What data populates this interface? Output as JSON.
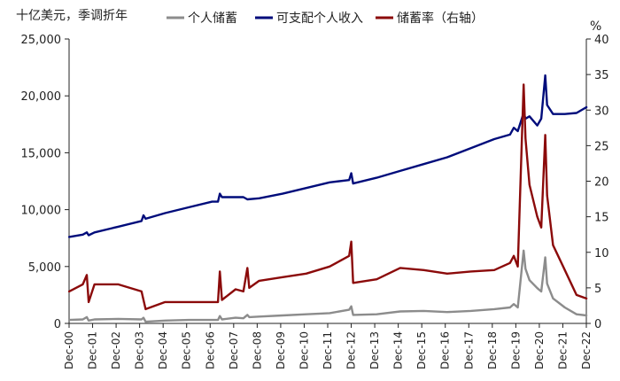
{
  "chart_data": {
    "type": "line",
    "title": "",
    "left_axis_label": "十亿美元，季调折年",
    "right_axis_label": "%",
    "y_left": {
      "min": 0,
      "max": 25000,
      "ticks": [
        "0",
        "5,000",
        "10,000",
        "15,000",
        "20,000",
        "25,000"
      ]
    },
    "y_right": {
      "min": 0,
      "max": 40,
      "ticks": [
        "0",
        "5",
        "10",
        "15",
        "20",
        "25",
        "30",
        "35",
        "40"
      ]
    },
    "x_range": [
      2000.917,
      2022.917
    ],
    "x_ticks": [
      "Dec-00",
      "Dec-01",
      "Dec-02",
      "Dec-03",
      "Dec-04",
      "Dec-05",
      "Dec-06",
      "Dec-07",
      "Dec-08",
      "Dec-09",
      "Dec-10",
      "Dec-11",
      "Dec-12",
      "Dec-13",
      "Dec-14",
      "Dec-15",
      "Dec-16",
      "Dec-17",
      "Dec-18",
      "Dec-19",
      "Dec-20",
      "Dec-21",
      "Dec-22"
    ],
    "legend_position": "top",
    "grid": false,
    "series": [
      {
        "name": "个人储蓄",
        "axis": "left",
        "color": "#8c8c8c",
        "points": [
          [
            2000.92,
            300
          ],
          [
            2001.5,
            350
          ],
          [
            2001.67,
            550
          ],
          [
            2001.75,
            250
          ],
          [
            2002.0,
            350
          ],
          [
            2003.0,
            400
          ],
          [
            2004.0,
            350
          ],
          [
            2004.08,
            500
          ],
          [
            2004.17,
            150
          ],
          [
            2005.0,
            250
          ],
          [
            2006.0,
            300
          ],
          [
            2007.0,
            300
          ],
          [
            2007.25,
            300
          ],
          [
            2007.33,
            650
          ],
          [
            2007.42,
            350
          ],
          [
            2008.0,
            500
          ],
          [
            2008.33,
            450
          ],
          [
            2008.5,
            750
          ],
          [
            2008.58,
            550
          ],
          [
            2009.0,
            600
          ],
          [
            2010.0,
            700
          ],
          [
            2011.0,
            800
          ],
          [
            2012.0,
            900
          ],
          [
            2012.83,
            1200
          ],
          [
            2012.92,
            1500
          ],
          [
            2013.0,
            750
          ],
          [
            2014.0,
            800
          ],
          [
            2015.0,
            1050
          ],
          [
            2016.0,
            1100
          ],
          [
            2017.0,
            1000
          ],
          [
            2018.0,
            1100
          ],
          [
            2019.0,
            1250
          ],
          [
            2019.67,
            1400
          ],
          [
            2019.83,
            1700
          ],
          [
            2020.0,
            1400
          ],
          [
            2020.25,
            6400
          ],
          [
            2020.33,
            4800
          ],
          [
            2020.5,
            3800
          ],
          [
            2020.83,
            3100
          ],
          [
            2021.0,
            2800
          ],
          [
            2021.17,
            5800
          ],
          [
            2021.25,
            3500
          ],
          [
            2021.5,
            2200
          ],
          [
            2022.0,
            1400
          ],
          [
            2022.5,
            800
          ],
          [
            2022.92,
            700
          ]
        ]
      },
      {
        "name": "可支配个人收入",
        "axis": "left",
        "color": "#000c7b",
        "points": [
          [
            2000.92,
            7600
          ],
          [
            2001.5,
            7800
          ],
          [
            2001.67,
            8000
          ],
          [
            2001.75,
            7750
          ],
          [
            2002.0,
            8000
          ],
          [
            2003.0,
            8500
          ],
          [
            2004.0,
            9000
          ],
          [
            2004.08,
            9500
          ],
          [
            2004.17,
            9200
          ],
          [
            2005.0,
            9700
          ],
          [
            2006.0,
            10200
          ],
          [
            2007.0,
            10700
          ],
          [
            2007.25,
            10700
          ],
          [
            2007.33,
            11400
          ],
          [
            2007.42,
            11100
          ],
          [
            2008.0,
            11100
          ],
          [
            2008.33,
            11100
          ],
          [
            2008.5,
            10900
          ],
          [
            2009.0,
            11000
          ],
          [
            2010.0,
            11400
          ],
          [
            2011.0,
            11900
          ],
          [
            2012.0,
            12400
          ],
          [
            2012.83,
            12600
          ],
          [
            2012.92,
            13200
          ],
          [
            2013.0,
            12300
          ],
          [
            2014.0,
            12800
          ],
          [
            2015.0,
            13400
          ],
          [
            2016.0,
            14000
          ],
          [
            2017.0,
            14600
          ],
          [
            2018.0,
            15400
          ],
          [
            2019.0,
            16200
          ],
          [
            2019.67,
            16600
          ],
          [
            2019.83,
            17200
          ],
          [
            2020.0,
            16900
          ],
          [
            2020.25,
            18500
          ],
          [
            2020.33,
            18000
          ],
          [
            2020.5,
            18200
          ],
          [
            2020.83,
            17400
          ],
          [
            2021.0,
            18000
          ],
          [
            2021.17,
            21800
          ],
          [
            2021.25,
            19200
          ],
          [
            2021.5,
            18400
          ],
          [
            2022.0,
            18400
          ],
          [
            2022.5,
            18500
          ],
          [
            2022.92,
            19000
          ]
        ]
      },
      {
        "name": "储蓄率（右轴）",
        "axis": "right",
        "color": "#8b0a0a",
        "points": [
          [
            2000.92,
            4.5
          ],
          [
            2001.5,
            5.5
          ],
          [
            2001.67,
            6.8
          ],
          [
            2001.75,
            3.0
          ],
          [
            2002.0,
            5.5
          ],
          [
            2003.0,
            5.5
          ],
          [
            2004.0,
            4.5
          ],
          [
            2004.08,
            3.3
          ],
          [
            2004.17,
            2.0
          ],
          [
            2005.0,
            3.0
          ],
          [
            2006.0,
            3.0
          ],
          [
            2007.0,
            3.0
          ],
          [
            2007.25,
            3.0
          ],
          [
            2007.33,
            7.3
          ],
          [
            2007.42,
            3.3
          ],
          [
            2008.0,
            4.8
          ],
          [
            2008.33,
            4.5
          ],
          [
            2008.5,
            7.8
          ],
          [
            2008.58,
            5.0
          ],
          [
            2009.0,
            6.0
          ],
          [
            2010.0,
            6.5
          ],
          [
            2011.0,
            7.0
          ],
          [
            2012.0,
            8.0
          ],
          [
            2012.83,
            9.5
          ],
          [
            2012.92,
            11.5
          ],
          [
            2013.0,
            5.7
          ],
          [
            2014.0,
            6.2
          ],
          [
            2015.0,
            7.8
          ],
          [
            2016.0,
            7.5
          ],
          [
            2017.0,
            7.0
          ],
          [
            2018.0,
            7.3
          ],
          [
            2019.0,
            7.5
          ],
          [
            2019.67,
            8.5
          ],
          [
            2019.83,
            9.5
          ],
          [
            2020.0,
            8.0
          ],
          [
            2020.25,
            33.6
          ],
          [
            2020.33,
            26.0
          ],
          [
            2020.5,
            19.5
          ],
          [
            2020.83,
            15.0
          ],
          [
            2021.0,
            13.5
          ],
          [
            2021.17,
            26.5
          ],
          [
            2021.25,
            18.0
          ],
          [
            2021.5,
            11.0
          ],
          [
            2022.0,
            7.5
          ],
          [
            2022.5,
            4.0
          ],
          [
            2022.92,
            3.5
          ]
        ]
      }
    ]
  }
}
